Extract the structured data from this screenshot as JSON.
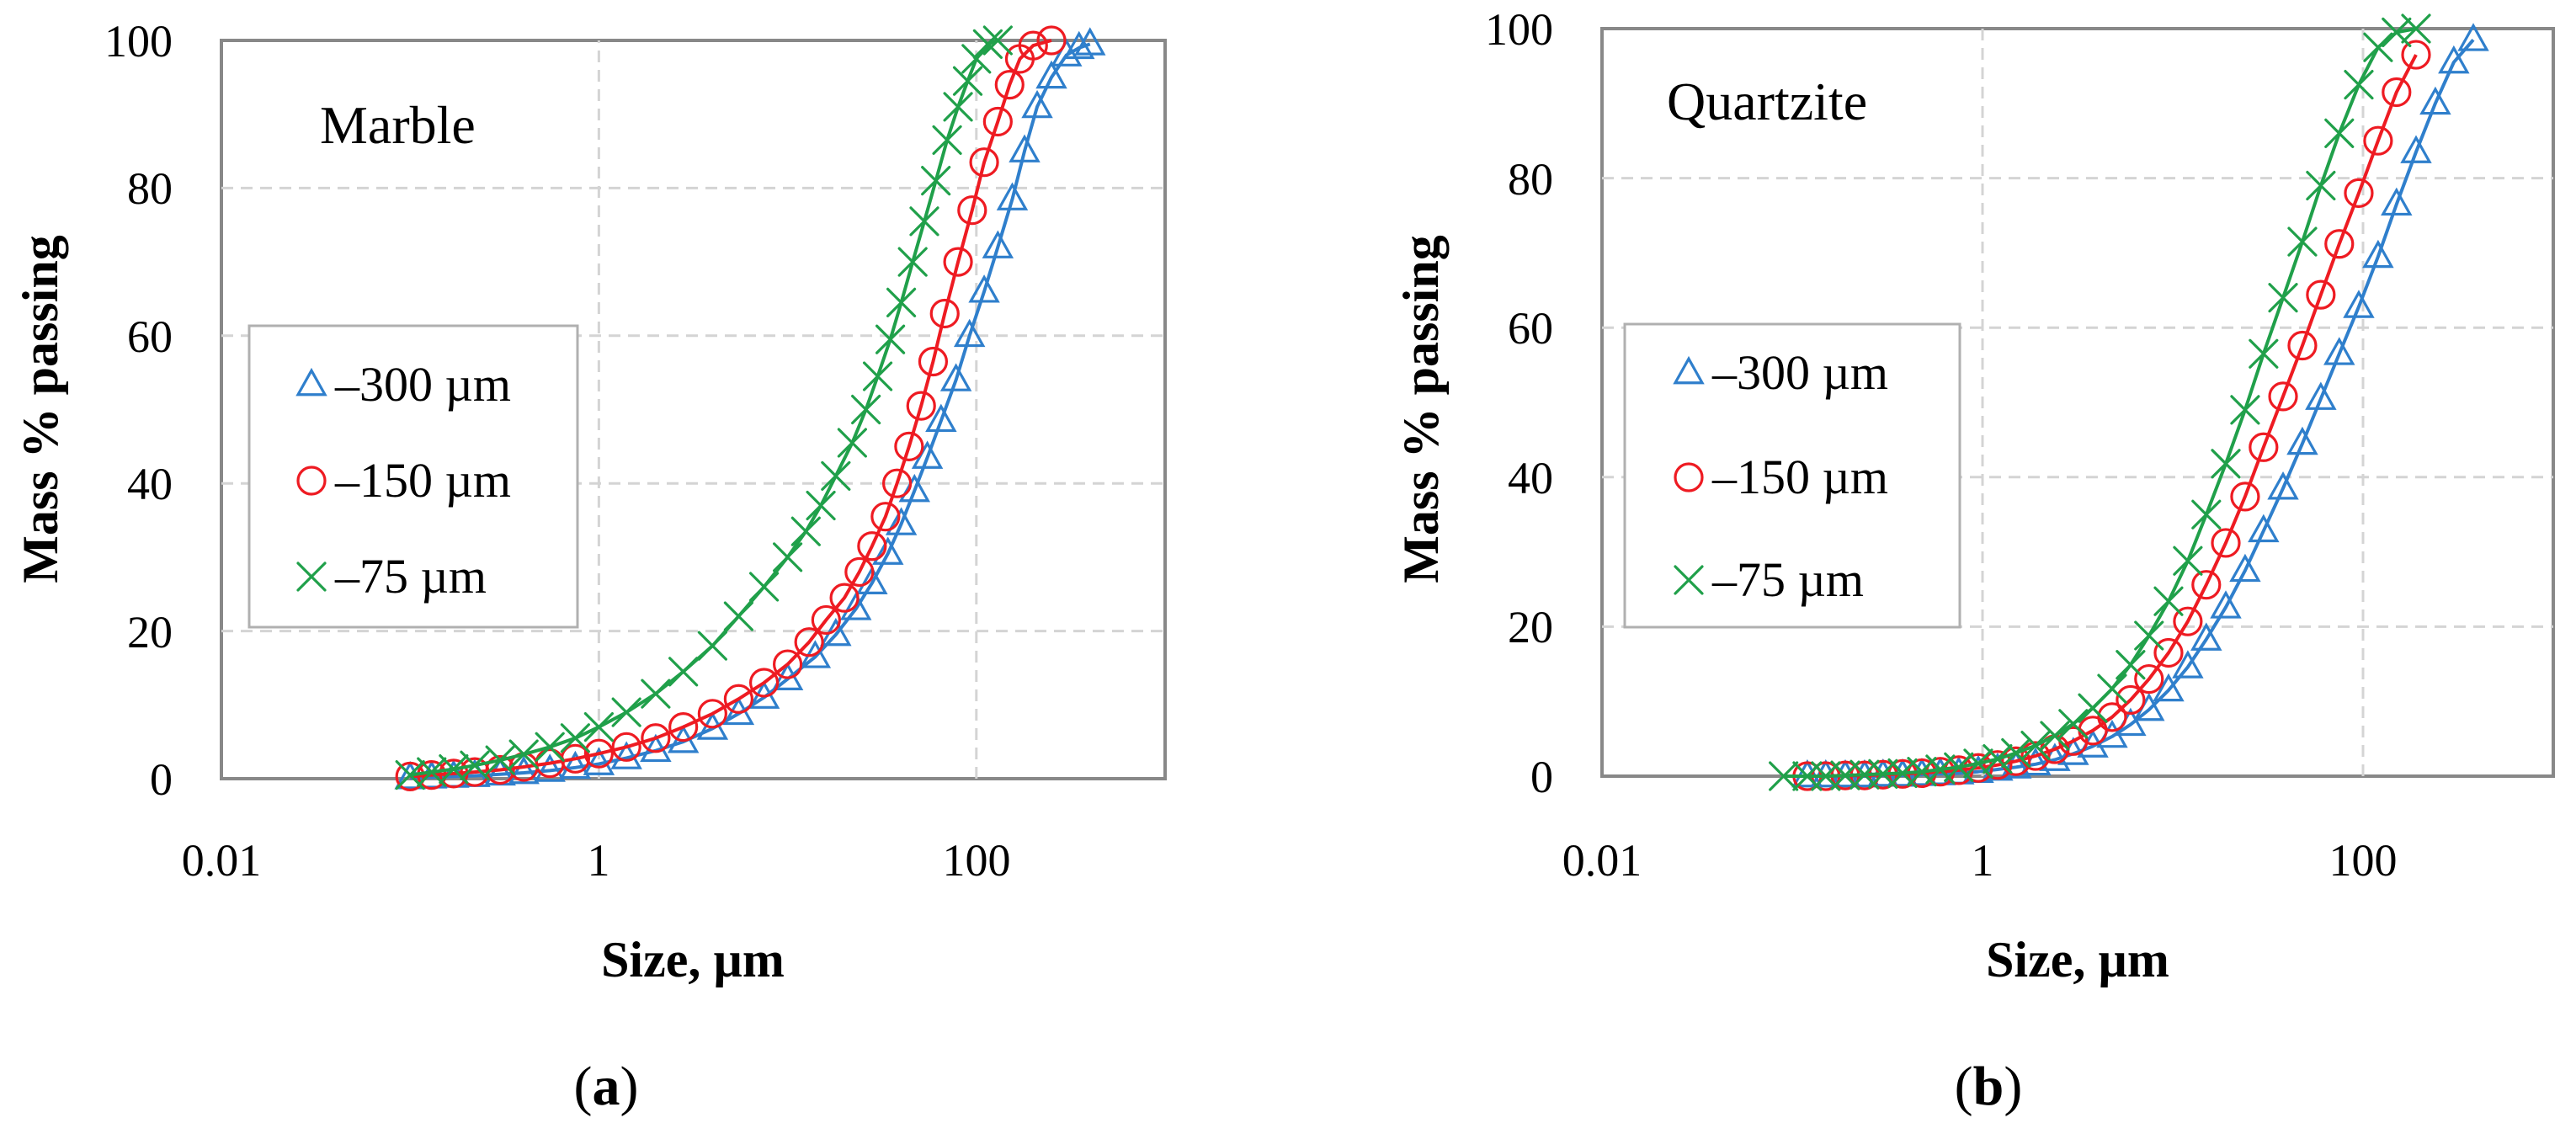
{
  "figure": {
    "panels": [
      {
        "panel_label_prefix": "(",
        "panel_letter": "a",
        "panel_label_suffix": ")",
        "annotation": "Marble"
      },
      {
        "panel_label_prefix": "(",
        "panel_letter": "b",
        "panel_label_suffix": ")",
        "annotation": "Quartzite"
      }
    ]
  },
  "colors": {
    "series_300": "#2f7fcc",
    "series_150": "#ee1b22",
    "series_75": "#20a04a",
    "grid": "#d4d4d4",
    "frame": "#888888"
  },
  "chart_data": [
    {
      "type": "scatter",
      "title": "",
      "annotation": "Marble",
      "xlabel": "Size, µm",
      "ylabel": "Mass % passing",
      "x_scale": "log",
      "xlim": [
        0.01,
        1000
      ],
      "ylim": [
        0,
        100
      ],
      "x_tick_labels": [
        "0.01",
        "1",
        "100"
      ],
      "y_tick_labels": [
        "0",
        "20",
        "40",
        "60",
        "80",
        "100"
      ],
      "grid": true,
      "legend_position": "center-left",
      "series": [
        {
          "name": "–300 µm",
          "marker": "triangle",
          "x": [
            0.1,
            0.13,
            0.17,
            0.22,
            0.3,
            0.4,
            0.55,
            0.75,
            1.0,
            1.4,
            2.0,
            2.8,
            4,
            5.5,
            7.5,
            10,
            14,
            18,
            23,
            28,
            34,
            40,
            47,
            55,
            65,
            78,
            92,
            110,
            130,
            155,
            180,
            210,
            250,
            300,
            350,
            400
          ],
          "y": [
            0.1,
            0.2,
            0.3,
            0.4,
            0.6,
            0.8,
            1.1,
            1.5,
            2,
            2.8,
            3.8,
            5,
            6.8,
            8.8,
            11,
            13.5,
            16.5,
            19.5,
            23,
            26.5,
            30.5,
            34.5,
            39,
            43.5,
            48.5,
            54,
            60,
            66,
            72,
            78.5,
            85,
            91,
            95,
            98,
            99,
            99.5
          ]
        },
        {
          "name": "–150 µm",
          "marker": "circle",
          "x": [
            0.1,
            0.13,
            0.17,
            0.22,
            0.3,
            0.4,
            0.55,
            0.75,
            1.0,
            1.4,
            2.0,
            2.8,
            4,
            5.5,
            7.5,
            10,
            13,
            16,
            20,
            24,
            28,
            33,
            38,
            44,
            51,
            59,
            68,
            80,
            95,
            110,
            130,
            150,
            170,
            200,
            250
          ],
          "y": [
            0.3,
            0.5,
            0.7,
            0.9,
            1.2,
            1.6,
            2.1,
            2.7,
            3.4,
            4.3,
            5.5,
            7,
            8.8,
            10.8,
            13,
            15.5,
            18.5,
            21.5,
            24.5,
            28,
            31.5,
            35.5,
            40,
            45,
            50.5,
            56.5,
            63,
            70,
            77,
            83.5,
            89,
            94,
            97.5,
            99.3,
            100
          ]
        },
        {
          "name": "–75 µm",
          "marker": "x",
          "x": [
            0.1,
            0.13,
            0.17,
            0.22,
            0.3,
            0.4,
            0.55,
            0.75,
            1.0,
            1.4,
            2.0,
            2.8,
            4,
            5.5,
            7.5,
            10,
            12.5,
            15,
            18,
            22,
            26,
            30,
            35,
            40,
            46,
            53,
            61,
            70,
            80,
            90,
            100,
            115,
            130
          ],
          "y": [
            0.5,
            0.9,
            1.3,
            1.8,
            2.5,
            3.3,
            4.3,
            5.5,
            7,
            9,
            11.5,
            14.5,
            18,
            22,
            26,
            30,
            33.5,
            37,
            41,
            45.5,
            50,
            54.5,
            59.5,
            64.5,
            70,
            75.5,
            81,
            86.5,
            91,
            94.5,
            97.5,
            99.5,
            100
          ]
        }
      ]
    },
    {
      "type": "scatter",
      "title": "",
      "annotation": "Quartzite",
      "xlabel": "Size, µm",
      "ylabel": "Mass % passing",
      "x_scale": "log",
      "xlim": [
        0.01,
        1000
      ],
      "ylim": [
        0,
        100
      ],
      "x_tick_labels": [
        "0.01",
        "1",
        "100"
      ],
      "y_tick_labels": [
        "0",
        "20",
        "40",
        "60",
        "80",
        "100"
      ],
      "grid": true,
      "legend_position": "center-left",
      "series": [
        {
          "name": "–300 µm",
          "marker": "triangle",
          "x": [
            0.12,
            0.15,
            0.19,
            0.24,
            0.3,
            0.38,
            0.48,
            0.6,
            0.75,
            0.95,
            1.2,
            1.5,
            1.9,
            2.4,
            3,
            3.8,
            4.8,
            6,
            7.5,
            9.5,
            12,
            15,
            19,
            24,
            30,
            38,
            48,
            60,
            75,
            95,
            120,
            150,
            190,
            240,
            300,
            380
          ],
          "y": [
            0,
            0,
            0,
            0,
            0.1,
            0.1,
            0.2,
            0.3,
            0.4,
            0.6,
            0.9,
            1.2,
            1.6,
            2.2,
            3,
            4,
            5.3,
            6.9,
            8.9,
            11.5,
            14.6,
            18.3,
            22.6,
            27.5,
            32.8,
            38.5,
            44.5,
            50.5,
            56.5,
            62.8,
            69.5,
            76.5,
            83.5,
            90,
            95.5,
            98.5
          ]
        },
        {
          "name": "–150 µm",
          "marker": "circle",
          "x": [
            0.12,
            0.15,
            0.19,
            0.24,
            0.3,
            0.38,
            0.48,
            0.6,
            0.75,
            0.95,
            1.2,
            1.5,
            1.9,
            2.4,
            3,
            3.8,
            4.8,
            6,
            7.5,
            9.5,
            12,
            15,
            19,
            24,
            30,
            38,
            48,
            60,
            75,
            95,
            120,
            150,
            190
          ],
          "y": [
            0,
            0,
            0.1,
            0.1,
            0.2,
            0.3,
            0.4,
            0.6,
            0.8,
            1.1,
            1.5,
            2,
            2.7,
            3.6,
            4.7,
            6.1,
            7.9,
            10.2,
            13,
            16.5,
            20.7,
            25.6,
            31.2,
            37.4,
            44,
            50.8,
            57.6,
            64.4,
            71.2,
            78,
            85,
            91.5,
            96.5
          ]
        },
        {
          "name": "–75 µm",
          "marker": "x",
          "x": [
            0.09,
            0.12,
            0.15,
            0.19,
            0.24,
            0.3,
            0.38,
            0.48,
            0.6,
            0.75,
            0.95,
            1.2,
            1.5,
            1.9,
            2.4,
            3,
            3.8,
            4.8,
            6,
            7.5,
            9.5,
            12,
            15,
            19,
            24,
            30,
            38,
            48,
            60,
            75,
            95,
            120,
            150,
            190
          ],
          "y": [
            0,
            0,
            0,
            0.1,
            0.2,
            0.3,
            0.4,
            0.6,
            0.9,
            1.2,
            1.7,
            2.3,
            3.1,
            4.1,
            5.4,
            7,
            9.1,
            11.7,
            14.9,
            18.8,
            23.4,
            28.8,
            35,
            41.8,
            49,
            56.5,
            64,
            71.5,
            79,
            86,
            92.5,
            97.5,
            99.5,
            100
          ]
        }
      ]
    }
  ]
}
